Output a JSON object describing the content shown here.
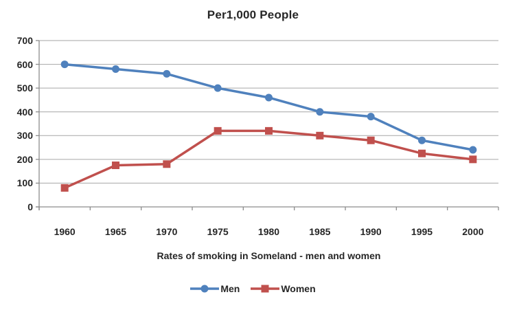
{
  "chart_data": {
    "type": "line",
    "title": "Per1,000 People",
    "xlabel": "Rates of smoking in Someland - men and women",
    "ylabel": "",
    "categories": [
      "1960",
      "1965",
      "1970",
      "1975",
      "1980",
      "1985",
      "1990",
      "1995",
      "2000"
    ],
    "series": [
      {
        "name": "Men",
        "marker": "circle",
        "color": "#4F81BD",
        "values": [
          600,
          580,
          560,
          500,
          460,
          400,
          380,
          280,
          240
        ]
      },
      {
        "name": "Women",
        "marker": "square",
        "color": "#C0504D",
        "values": [
          80,
          175,
          180,
          320,
          320,
          300,
          280,
          225,
          200
        ]
      }
    ],
    "ylim": [
      0,
      700
    ],
    "yticks": [
      0,
      100,
      200,
      300,
      400,
      500,
      600,
      700
    ],
    "grid": true,
    "legend_position": "bottom"
  },
  "colors": {
    "background": "#FFFFFF",
    "grid": "#A6A6A6",
    "axis": "#8C8C8C",
    "text": "#262626"
  }
}
